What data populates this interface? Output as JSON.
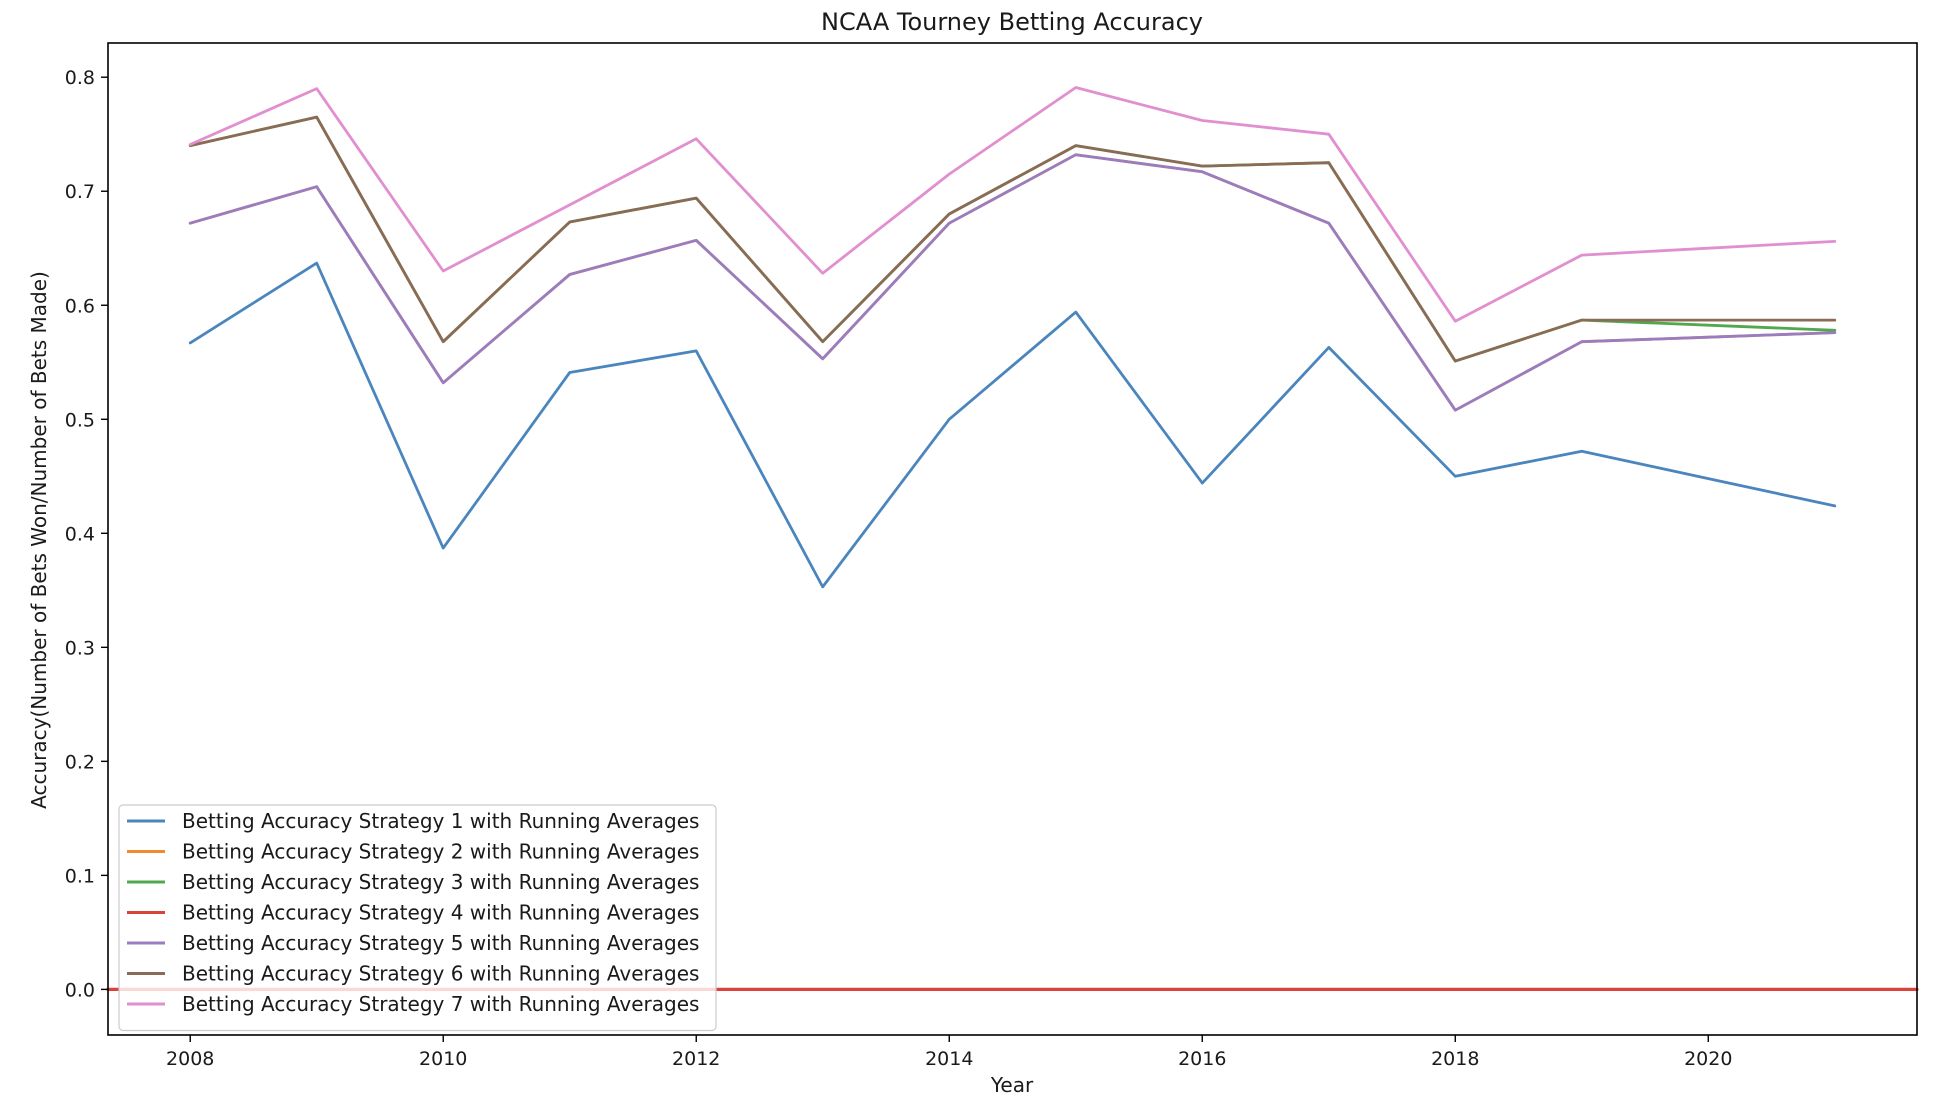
{
  "chart_data": {
    "type": "line",
    "title": "NCAA Tourney Betting Accuracy",
    "xlabel": "Year",
    "ylabel": "Accuracy(Number of Bets Won/Number of Bets Made)",
    "x": [
      2008,
      2009,
      2010,
      2011,
      2012,
      2013,
      2014,
      2015,
      2016,
      2017,
      2018,
      2019,
      2020,
      2021
    ],
    "xlim": [
      2007.35,
      2021.65
    ],
    "ylim": [
      -0.04,
      0.83
    ],
    "xticks": [
      2008,
      2010,
      2012,
      2014,
      2016,
      2018,
      2020
    ],
    "xtick_labels": [
      "2008",
      "2010",
      "2012",
      "2014",
      "2016",
      "2018",
      "2020"
    ],
    "yticks": [
      0.0,
      0.1,
      0.2,
      0.3,
      0.4,
      0.5,
      0.6,
      0.7,
      0.8
    ],
    "ytick_labels": [
      "0.0",
      "0.1",
      "0.2",
      "0.3",
      "0.4",
      "0.5",
      "0.6",
      "0.7",
      "0.8"
    ],
    "grid": false,
    "legend_position": "lower-left",
    "series": [
      {
        "name": "Betting Accuracy Strategy 1 with Running Averages",
        "color": "#4a86bd",
        "values": [
          0.567,
          0.637,
          0.387,
          0.541,
          0.56,
          0.353,
          0.5,
          0.594,
          0.444,
          0.563,
          0.45,
          0.472,
          0.448,
          0.424
        ]
      },
      {
        "name": "Betting Accuracy Strategy 2 with Running Averages",
        "color": "#f08a2c",
        "values": [
          0.672,
          0.704,
          0.532,
          0.627,
          0.657,
          0.553,
          0.672,
          0.732,
          0.717,
          0.672,
          0.508,
          0.568,
          null,
          0.576
        ]
      },
      {
        "name": "Betting Accuracy Strategy 3 with Running Averages",
        "color": "#52a84e",
        "values": [
          0.74,
          0.765,
          0.568,
          0.673,
          0.694,
          0.568,
          0.68,
          0.74,
          0.722,
          0.725,
          0.551,
          0.587,
          null,
          0.578
        ]
      },
      {
        "name": "Betting Accuracy Strategy 4 with Running Averages",
        "color": "#d9433c",
        "values": [
          0.0,
          0.0,
          0.0,
          0.0,
          0.0,
          0.0,
          0.0,
          0.0,
          0.0,
          0.0,
          0.0,
          0.0,
          0.0,
          0.0
        ]
      },
      {
        "name": "Betting Accuracy Strategy 5 with Running Averages",
        "color": "#9a7dc1",
        "values": [
          0.672,
          0.704,
          0.532,
          0.627,
          0.657,
          0.553,
          0.672,
          0.732,
          0.717,
          0.672,
          0.508,
          0.568,
          null,
          0.576
        ]
      },
      {
        "name": "Betting Accuracy Strategy 6 with Running Averages",
        "color": "#8b6b55",
        "values": [
          0.74,
          0.765,
          0.568,
          0.673,
          0.694,
          0.568,
          0.68,
          0.74,
          0.722,
          0.725,
          0.551,
          0.587,
          null,
          0.587
        ]
      },
      {
        "name": "Betting Accuracy Strategy 7 with Running Averages",
        "color": "#e18fcf",
        "values": [
          0.741,
          0.79,
          0.63,
          0.688,
          0.746,
          0.628,
          0.715,
          0.791,
          0.762,
          0.75,
          0.586,
          0.644,
          null,
          0.656
        ]
      }
    ]
  }
}
